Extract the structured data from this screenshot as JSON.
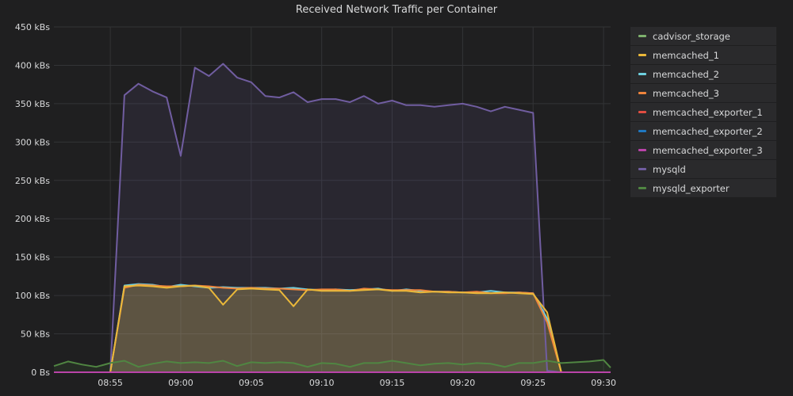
{
  "chart_data": {
    "type": "area",
    "title": "Received Network Traffic per Container",
    "xlabel": "",
    "ylabel": "",
    "x": [
      "08:51",
      "08:52",
      "08:53",
      "08:54",
      "08:55",
      "08:56",
      "08:57",
      "08:58",
      "08:59",
      "09:00",
      "09:01",
      "09:02",
      "09:03",
      "09:04",
      "09:05",
      "09:06",
      "09:07",
      "09:08",
      "09:09",
      "09:10",
      "09:11",
      "09:12",
      "09:13",
      "09:14",
      "09:15",
      "09:16",
      "09:17",
      "09:18",
      "09:19",
      "09:20",
      "09:21",
      "09:22",
      "09:23",
      "09:24",
      "09:25",
      "09:26",
      "09:27",
      "09:28",
      "09:29",
      "09:30",
      "09:30:30"
    ],
    "x_ticks": [
      "08:55",
      "09:00",
      "09:05",
      "09:10",
      "09:15",
      "09:20",
      "09:25",
      "09:30"
    ],
    "y_ticks": [
      "0 Bs",
      "50 kBs",
      "100 kBs",
      "150 kBs",
      "200 kBs",
      "250 kBs",
      "300 kBs",
      "350 kBs",
      "400 kBs",
      "450 kBs"
    ],
    "ylim": [
      0,
      450
    ],
    "units": "kBs",
    "grid": true,
    "legend_position": "right",
    "series": [
      {
        "name": "cadvisor_storage",
        "color": "#7eb26d",
        "values": [
          0,
          0,
          0,
          0,
          0,
          0,
          0,
          0,
          0,
          0,
          0,
          0,
          0,
          0,
          0,
          0,
          0,
          0,
          0,
          0,
          0,
          0,
          0,
          0,
          0,
          0,
          0,
          0,
          0,
          0,
          0,
          0,
          0,
          0,
          0,
          0,
          0,
          0,
          0,
          0,
          0
        ]
      },
      {
        "name": "memcached_1",
        "color": "#eab839",
        "values": [
          0,
          0,
          0,
          0,
          0,
          112,
          113,
          112,
          110,
          112,
          113,
          110,
          88,
          108,
          109,
          108,
          107,
          86,
          108,
          106,
          106,
          106,
          107,
          108,
          106,
          106,
          104,
          105,
          104,
          104,
          103,
          103,
          104,
          103,
          102,
          78,
          0,
          0,
          0,
          0,
          0
        ]
      },
      {
        "name": "memcached_2",
        "color": "#6ed0e0",
        "values": [
          0,
          0,
          0,
          0,
          0,
          113,
          115,
          114,
          111,
          114,
          112,
          110,
          111,
          110,
          110,
          110,
          109,
          110,
          108,
          107,
          108,
          107,
          108,
          109,
          106,
          108,
          106,
          105,
          105,
          104,
          104,
          106,
          104,
          104,
          103,
          70,
          0,
          0,
          0,
          0,
          0
        ]
      },
      {
        "name": "memcached_3",
        "color": "#ef843c",
        "values": [
          0,
          0,
          0,
          0,
          0,
          110,
          114,
          113,
          112,
          112,
          113,
          112,
          110,
          109,
          110,
          109,
          109,
          108,
          107,
          108,
          108,
          106,
          109,
          108,
          107,
          107,
          107,
          105,
          105,
          104,
          105,
          103,
          103,
          104,
          103,
          65,
          0,
          0,
          0,
          0,
          0
        ]
      },
      {
        "name": "memcached_exporter_1",
        "color": "#e24d42",
        "values": [
          0,
          0,
          0,
          0,
          0,
          0,
          0,
          0,
          0,
          0,
          0,
          0,
          0,
          0,
          0,
          0,
          0,
          0,
          0,
          0,
          0,
          0,
          0,
          0,
          0,
          0,
          0,
          0,
          0,
          0,
          0,
          0,
          0,
          0,
          0,
          0,
          0,
          0,
          0,
          0,
          0
        ]
      },
      {
        "name": "memcached_exporter_2",
        "color": "#1f78c1",
        "values": [
          0,
          0,
          0,
          0,
          0,
          0,
          0,
          0,
          0,
          0,
          0,
          0,
          0,
          0,
          0,
          0,
          0,
          0,
          0,
          0,
          0,
          0,
          0,
          0,
          0,
          0,
          0,
          0,
          0,
          0,
          0,
          0,
          0,
          0,
          0,
          0,
          0,
          0,
          0,
          0,
          0
        ]
      },
      {
        "name": "memcached_exporter_3",
        "color": "#ba43a9",
        "values": [
          0,
          0,
          0,
          0,
          0,
          0,
          0,
          0,
          0,
          0,
          0,
          0,
          0,
          0,
          0,
          0,
          0,
          0,
          0,
          0,
          0,
          0,
          0,
          0,
          0,
          0,
          0,
          0,
          0,
          0,
          0,
          0,
          0,
          0,
          0,
          0,
          0,
          0,
          0,
          0,
          0
        ]
      },
      {
        "name": "mysqld",
        "color": "#705da0",
        "values": [
          0,
          0,
          0,
          0,
          0,
          361,
          376,
          366,
          358,
          282,
          397,
          386,
          402,
          384,
          378,
          360,
          358,
          365,
          352,
          356,
          356,
          352,
          360,
          350,
          354,
          348,
          348,
          346,
          348,
          350,
          346,
          340,
          346,
          342,
          338,
          2,
          0,
          0,
          0,
          0,
          0
        ]
      },
      {
        "name": "mysqld_exporter",
        "color": "#508642",
        "values": [
          8,
          14,
          10,
          7,
          12,
          15,
          7,
          11,
          14,
          12,
          13,
          12,
          15,
          8,
          13,
          12,
          13,
          12,
          7,
          12,
          11,
          7,
          12,
          12,
          15,
          12,
          9,
          11,
          12,
          10,
          12,
          11,
          7,
          12,
          12,
          15,
          12,
          13,
          14,
          16,
          6
        ]
      }
    ]
  }
}
